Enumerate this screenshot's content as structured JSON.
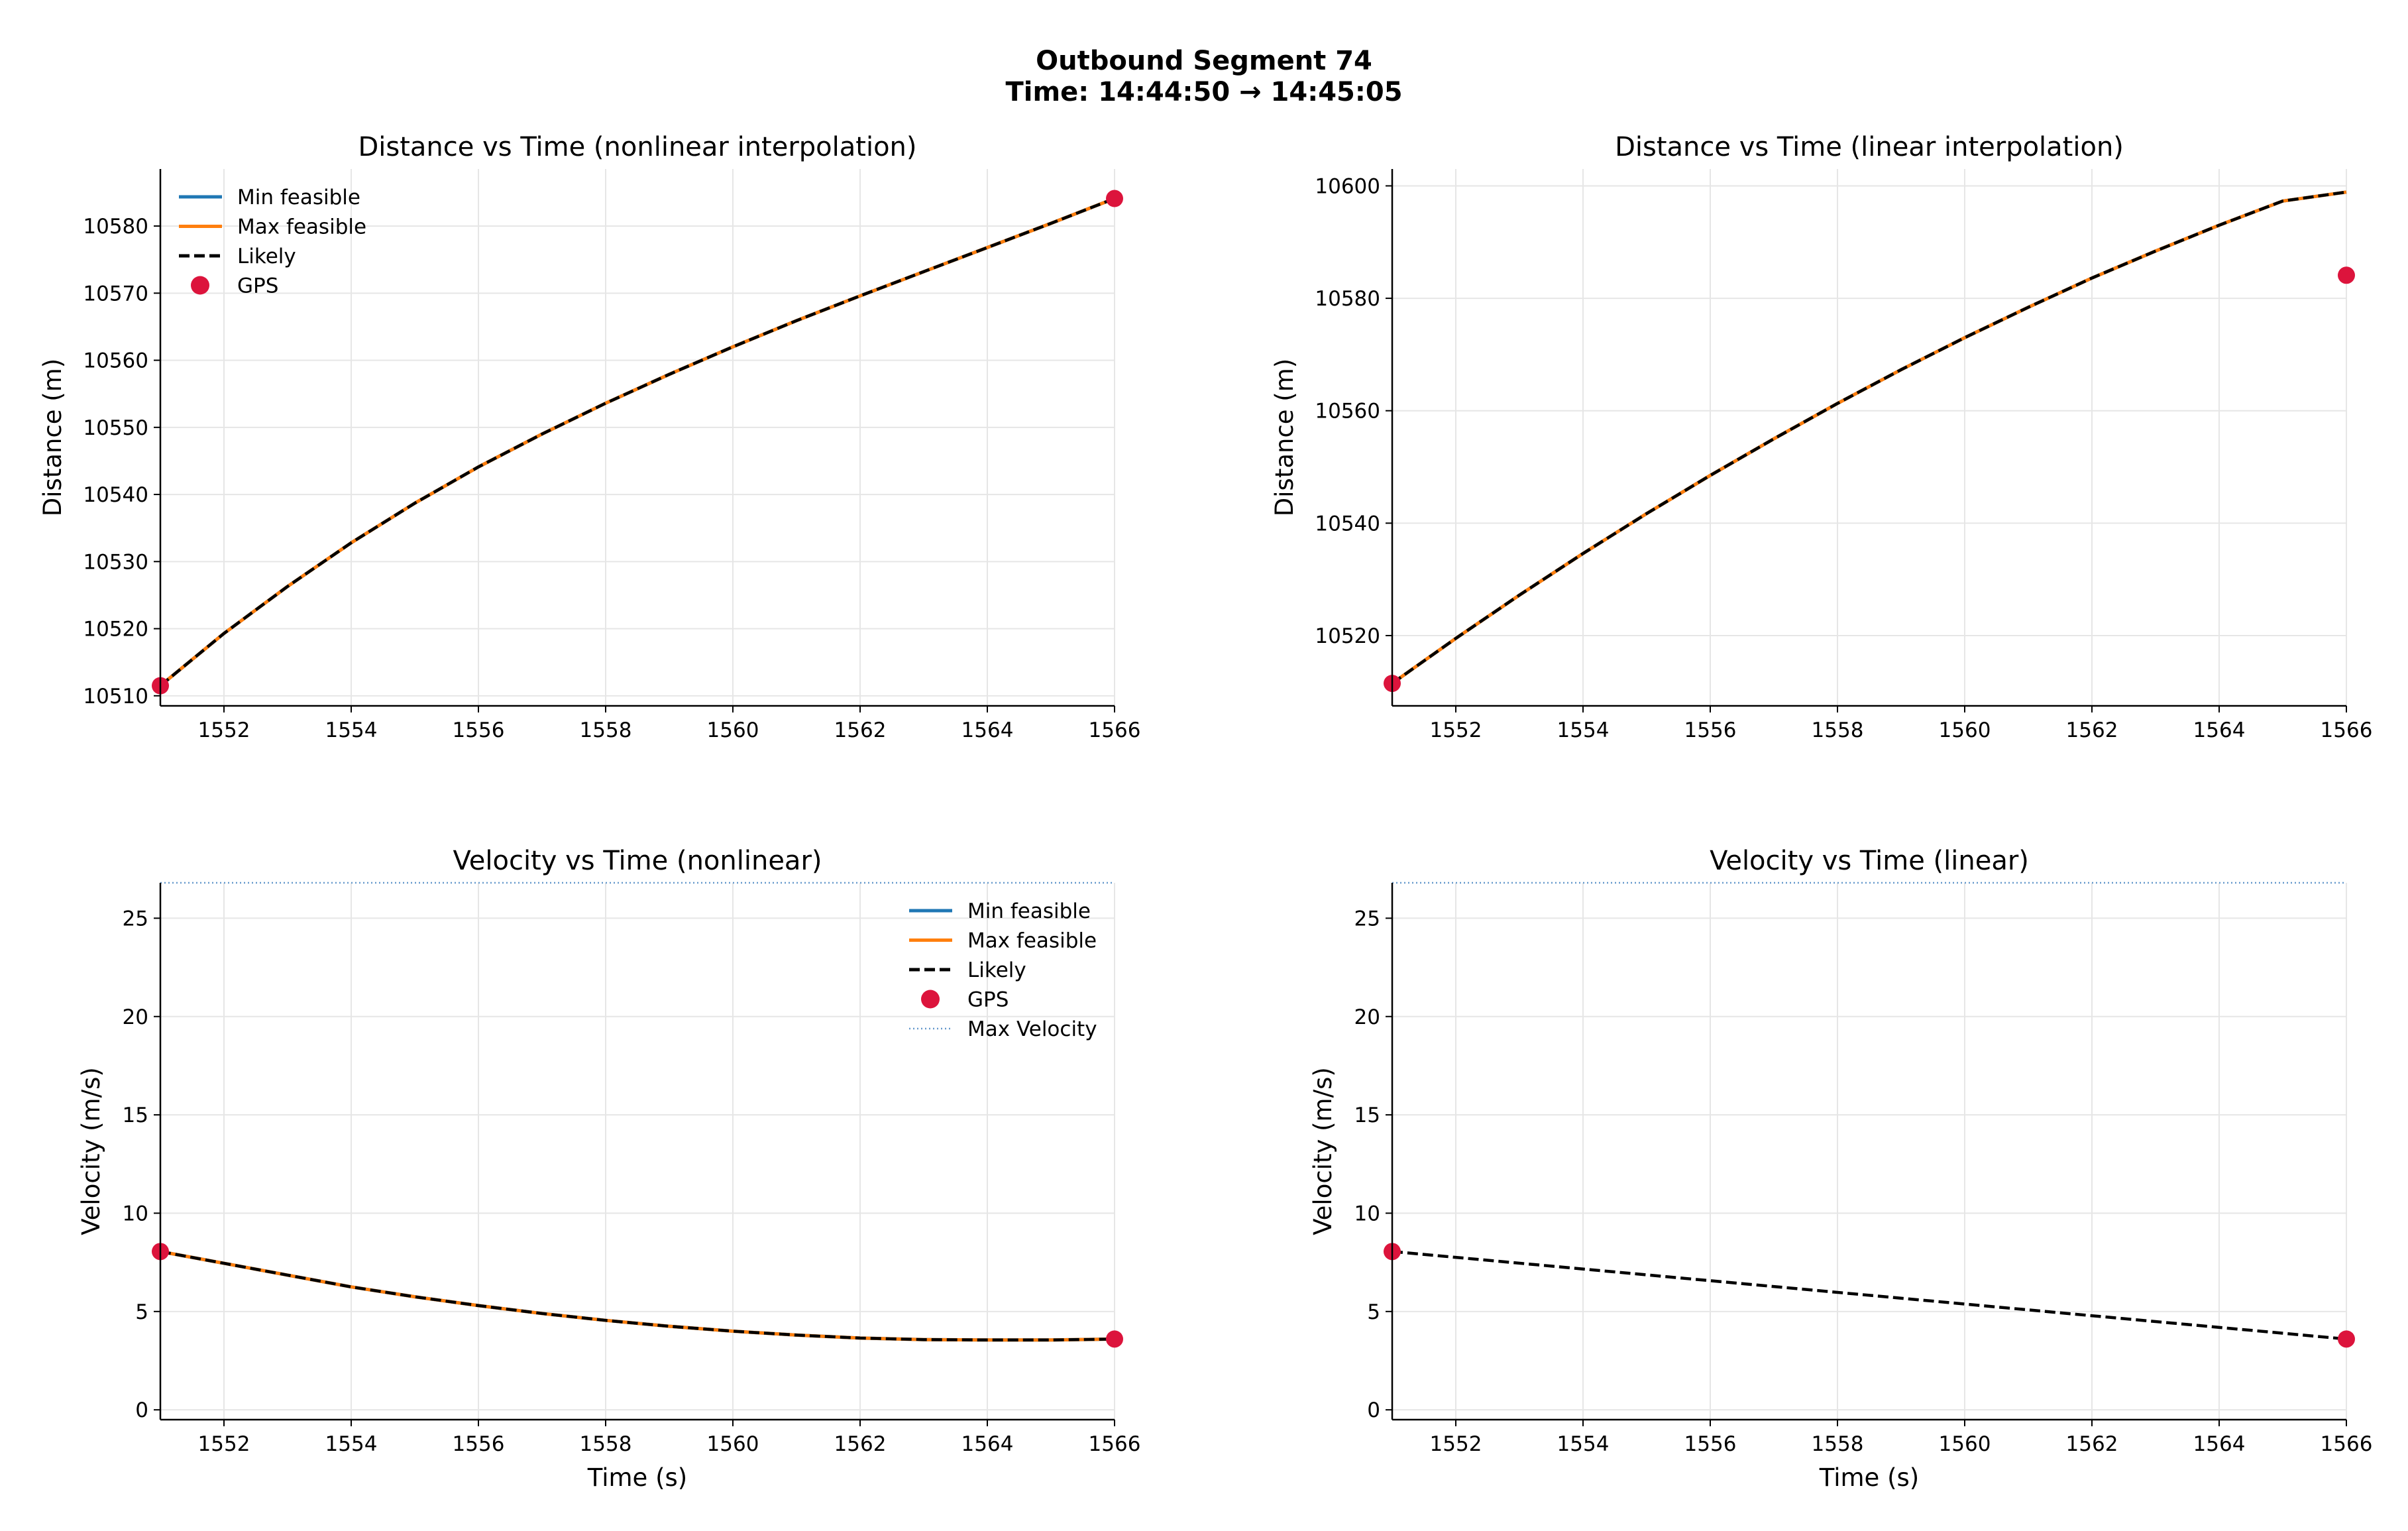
{
  "figure": {
    "title_line1": "Outbound Segment 74",
    "title_line2": "Time: 14:44:50 → 14:45:05"
  },
  "colors": {
    "min_feasible": "#1f77b4",
    "max_feasible": "#ff7f0e",
    "likely": "#000000",
    "gps": "#dc143c",
    "max_velocity": "#6699cc",
    "grid": "#e6e6e6"
  },
  "chart_data": [
    {
      "id": "dist-nonlinear",
      "type": "line",
      "title": "Distance vs Time (nonlinear interpolation)",
      "xlabel": "",
      "ylabel": "Distance (m)",
      "xlim": [
        1551,
        1566
      ],
      "ylim": [
        10508.5,
        10588.5
      ],
      "xticks": [
        1552,
        1554,
        1556,
        1558,
        1560,
        1562,
        1564,
        1566
      ],
      "yticks": [
        10510,
        10520,
        10530,
        10540,
        10550,
        10560,
        10570,
        10580
      ],
      "grid": true,
      "legend": "upper-left",
      "series": [
        {
          "name": "Min feasible",
          "style": "solid",
          "color": "#1f77b4",
          "x": [
            1551,
            1552,
            1553,
            1554,
            1555,
            1556,
            1557,
            1558,
            1559,
            1560,
            1561,
            1562,
            1563,
            1564,
            1565,
            1566
          ],
          "y": [
            10511.5,
            10519.3,
            10526.3,
            10532.8,
            10538.7,
            10544.1,
            10549.0,
            10553.6,
            10557.9,
            10562.0,
            10565.9,
            10569.6,
            10573.2,
            10576.8,
            10580.4,
            10584.1
          ]
        },
        {
          "name": "Max feasible",
          "style": "solid",
          "color": "#ff7f0e",
          "x": [
            1551,
            1552,
            1553,
            1554,
            1555,
            1556,
            1557,
            1558,
            1559,
            1560,
            1561,
            1562,
            1563,
            1564,
            1565,
            1566
          ],
          "y": [
            10511.5,
            10519.3,
            10526.3,
            10532.8,
            10538.7,
            10544.1,
            10549.0,
            10553.6,
            10557.9,
            10562.0,
            10565.9,
            10569.6,
            10573.2,
            10576.8,
            10580.4,
            10584.1
          ]
        },
        {
          "name": "Likely",
          "style": "dashed",
          "color": "#000000",
          "x": [
            1551,
            1552,
            1553,
            1554,
            1555,
            1556,
            1557,
            1558,
            1559,
            1560,
            1561,
            1562,
            1563,
            1564,
            1565,
            1566
          ],
          "y": [
            10511.5,
            10519.3,
            10526.3,
            10532.8,
            10538.7,
            10544.1,
            10549.0,
            10553.6,
            10557.9,
            10562.0,
            10565.9,
            10569.6,
            10573.2,
            10576.8,
            10580.4,
            10584.1
          ]
        }
      ],
      "gps": {
        "name": "GPS",
        "x": [
          1551,
          1566
        ],
        "y": [
          10511.5,
          10584.1
        ]
      }
    },
    {
      "id": "dist-linear",
      "type": "line",
      "title": "Distance vs Time (linear interpolation)",
      "xlabel": "",
      "ylabel": "Distance (m)",
      "xlim": [
        1551,
        1566
      ],
      "ylim": [
        10507.5,
        10603
      ],
      "xticks": [
        1552,
        1554,
        1556,
        1558,
        1560,
        1562,
        1564,
        1566
      ],
      "yticks": [
        10520,
        10540,
        10560,
        10580,
        10600
      ],
      "grid": true,
      "legend": "none",
      "series": [
        {
          "name": "Min feasible",
          "style": "solid",
          "color": "#1f77b4",
          "x": [
            1551,
            1552,
            1553,
            1554,
            1555,
            1556,
            1557,
            1558,
            1559,
            1560,
            1561,
            1562,
            1563,
            1564,
            1565,
            1566
          ],
          "y": [
            10511.5,
            10519.5,
            10527.2,
            10534.6,
            10541.7,
            10548.5,
            10555.0,
            10561.3,
            10567.3,
            10573.0,
            10578.4,
            10583.6,
            10588.4,
            10593.0,
            10597.3,
            10598.9
          ]
        },
        {
          "name": "Max feasible",
          "style": "solid",
          "color": "#ff7f0e",
          "x": [
            1551,
            1552,
            1553,
            1554,
            1555,
            1556,
            1557,
            1558,
            1559,
            1560,
            1561,
            1562,
            1563,
            1564,
            1565,
            1566
          ],
          "y": [
            10511.5,
            10519.5,
            10527.2,
            10534.6,
            10541.7,
            10548.5,
            10555.0,
            10561.3,
            10567.3,
            10573.0,
            10578.4,
            10583.6,
            10588.4,
            10593.0,
            10597.3,
            10598.9
          ]
        },
        {
          "name": "Likely",
          "style": "dashed",
          "color": "#000000",
          "x": [
            1551,
            1552,
            1553,
            1554,
            1555,
            1556,
            1557,
            1558,
            1559,
            1560,
            1561,
            1562,
            1563,
            1564,
            1565,
            1566
          ],
          "y": [
            10511.5,
            10519.5,
            10527.2,
            10534.6,
            10541.7,
            10548.5,
            10555.0,
            10561.3,
            10567.3,
            10573.0,
            10578.4,
            10583.6,
            10588.4,
            10593.0,
            10597.3,
            10598.9
          ]
        }
      ],
      "gps": {
        "name": "GPS",
        "x": [
          1551,
          1566
        ],
        "y": [
          10511.5,
          10584.1
        ]
      }
    },
    {
      "id": "vel-nonlinear",
      "type": "line",
      "title": "Velocity vs Time (nonlinear)",
      "xlabel": "Time (s)",
      "ylabel": "Velocity (m/s)",
      "xlim": [
        1551,
        1566
      ],
      "ylim": [
        -0.5,
        26.8
      ],
      "xticks": [
        1552,
        1554,
        1556,
        1558,
        1560,
        1562,
        1564,
        1566
      ],
      "yticks": [
        0,
        5,
        10,
        15,
        20,
        25
      ],
      "grid": true,
      "legend": "upper-right",
      "series": [
        {
          "name": "Min feasible",
          "style": "solid",
          "color": "#1f77b4",
          "x": [
            1551,
            1552,
            1553,
            1554,
            1555,
            1556,
            1557,
            1558,
            1559,
            1560,
            1561,
            1562,
            1563,
            1564,
            1565,
            1566
          ],
          "y": [
            8.05,
            7.45,
            6.85,
            6.25,
            5.75,
            5.3,
            4.9,
            4.55,
            4.25,
            4.0,
            3.8,
            3.65,
            3.57,
            3.55,
            3.55,
            3.6
          ]
        },
        {
          "name": "Max feasible",
          "style": "solid",
          "color": "#ff7f0e",
          "x": [
            1551,
            1552,
            1553,
            1554,
            1555,
            1556,
            1557,
            1558,
            1559,
            1560,
            1561,
            1562,
            1563,
            1564,
            1565,
            1566
          ],
          "y": [
            8.05,
            7.45,
            6.85,
            6.25,
            5.75,
            5.3,
            4.9,
            4.55,
            4.25,
            4.0,
            3.8,
            3.65,
            3.57,
            3.55,
            3.55,
            3.6
          ]
        },
        {
          "name": "Likely",
          "style": "dashed",
          "color": "#000000",
          "x": [
            1551,
            1552,
            1553,
            1554,
            1555,
            1556,
            1557,
            1558,
            1559,
            1560,
            1561,
            1562,
            1563,
            1564,
            1565,
            1566
          ],
          "y": [
            8.05,
            7.45,
            6.85,
            6.25,
            5.75,
            5.3,
            4.9,
            4.55,
            4.25,
            4.0,
            3.8,
            3.65,
            3.57,
            3.55,
            3.55,
            3.6
          ]
        }
      ],
      "gps": {
        "name": "GPS",
        "x": [
          1551,
          1566
        ],
        "y": [
          8.05,
          3.6
        ]
      },
      "max_velocity": {
        "name": "Max Velocity",
        "value": 26.8
      }
    },
    {
      "id": "vel-linear",
      "type": "line",
      "title": "Velocity vs Time (linear)",
      "xlabel": "Time (s)",
      "ylabel": "Velocity (m/s)",
      "xlim": [
        1551,
        1566
      ],
      "ylim": [
        -0.5,
        26.8
      ],
      "xticks": [
        1552,
        1554,
        1556,
        1558,
        1560,
        1562,
        1564,
        1566
      ],
      "yticks": [
        0,
        5,
        10,
        15,
        20,
        25
      ],
      "grid": true,
      "legend": "none",
      "series": [
        {
          "name": "Likely",
          "style": "dashed",
          "color": "#000000",
          "x": [
            1551,
            1566
          ],
          "y": [
            8.05,
            3.6
          ]
        }
      ],
      "gps": {
        "name": "GPS",
        "x": [
          1551,
          1566
        ],
        "y": [
          8.05,
          3.6
        ]
      },
      "max_velocity": {
        "name": "Max Velocity",
        "value": 26.8
      }
    }
  ]
}
